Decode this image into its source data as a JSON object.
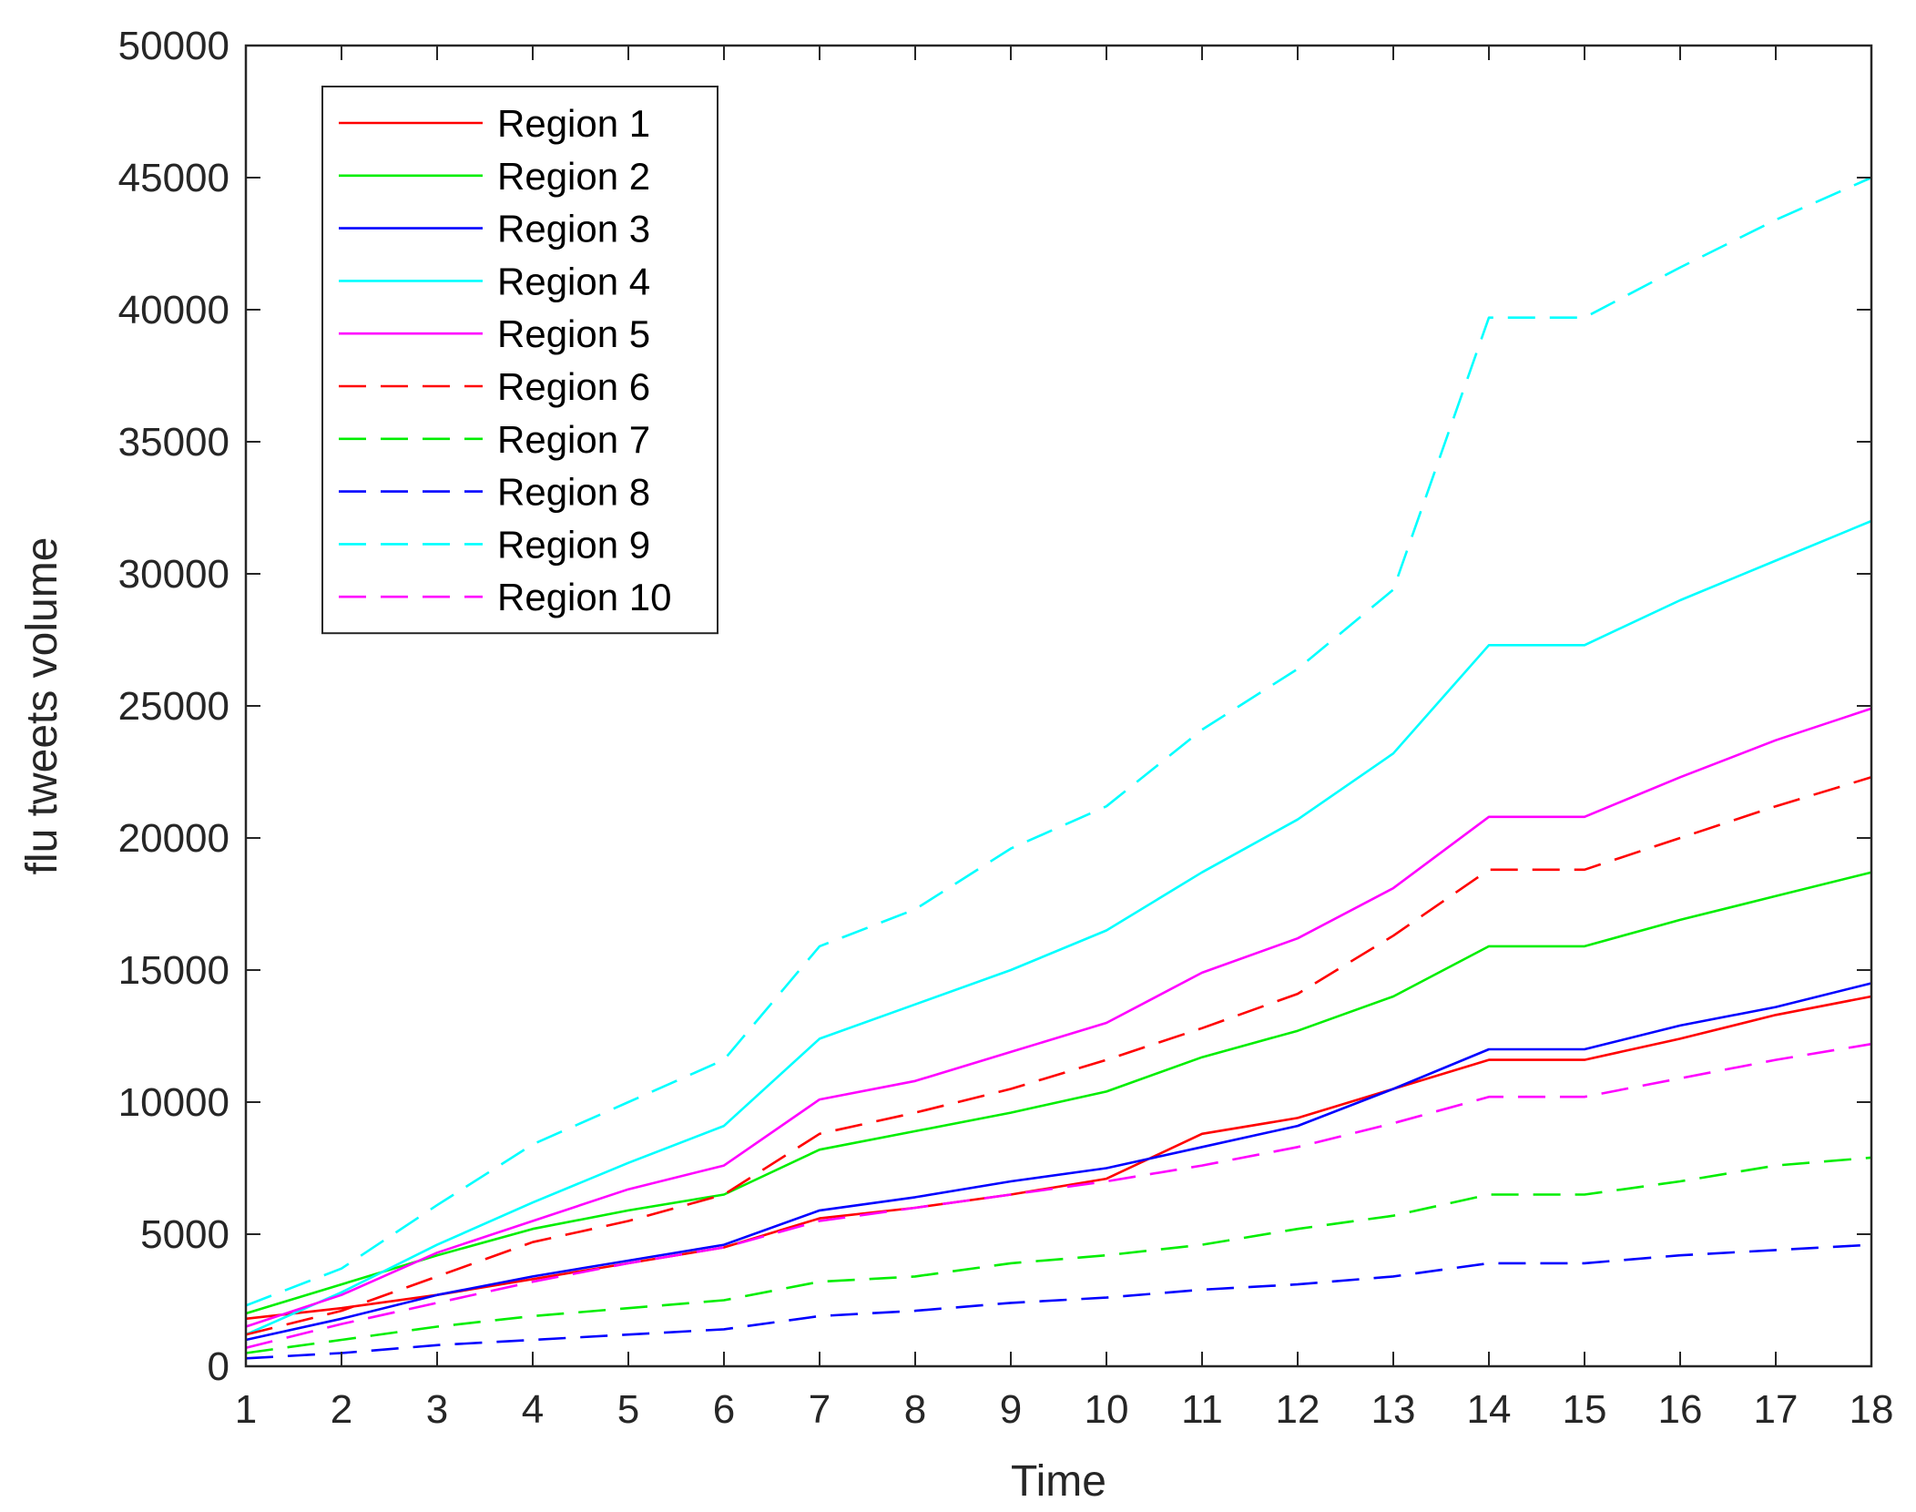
{
  "chart_data": {
    "type": "line",
    "title": "",
    "xlabel": "Time",
    "ylabel": "flu tweets volume",
    "xlim": [
      1,
      18
    ],
    "ylim": [
      0,
      50000
    ],
    "grid": false,
    "legend_position": "top-left",
    "x": [
      1,
      2,
      3,
      4,
      5,
      6,
      7,
      8,
      9,
      10,
      11,
      12,
      13,
      14,
      15,
      16,
      17,
      18
    ],
    "x_ticks": [
      1,
      2,
      3,
      4,
      5,
      6,
      7,
      8,
      9,
      10,
      11,
      12,
      13,
      14,
      15,
      16,
      17,
      18
    ],
    "y_ticks": [
      0,
      5000,
      10000,
      15000,
      20000,
      25000,
      30000,
      35000,
      40000,
      45000,
      50000
    ],
    "series": [
      {
        "name": "Region 1",
        "color": "#ff0000",
        "style": "solid",
        "values": [
          1800,
          2200,
          2700,
          3300,
          3900,
          4500,
          5600,
          6000,
          6500,
          7100,
          8800,
          9400,
          10500,
          11600,
          11600,
          12400,
          13300,
          14000
        ]
      },
      {
        "name": "Region 2",
        "color": "#00ee00",
        "style": "solid",
        "values": [
          2000,
          3100,
          4200,
          5200,
          5900,
          6500,
          8200,
          8900,
          9600,
          10400,
          11700,
          12700,
          14000,
          15900,
          15900,
          16900,
          17800,
          18700
        ]
      },
      {
        "name": "Region 3",
        "color": "#0000ff",
        "style": "solid",
        "values": [
          1000,
          1800,
          2700,
          3400,
          4000,
          4600,
          5900,
          6400,
          7000,
          7500,
          8300,
          9100,
          10500,
          12000,
          12000,
          12900,
          13600,
          14500
        ]
      },
      {
        "name": "Region 4",
        "color": "#00ffff",
        "style": "solid",
        "values": [
          1200,
          2800,
          4600,
          6200,
          7700,
          9100,
          12400,
          13700,
          15000,
          16500,
          18700,
          20700,
          23200,
          27300,
          27300,
          29000,
          30500,
          32000
        ]
      },
      {
        "name": "Region 5",
        "color": "#ff00ff",
        "style": "solid",
        "values": [
          1500,
          2700,
          4300,
          5500,
          6700,
          7600,
          10100,
          10800,
          11900,
          13000,
          14900,
          16200,
          18100,
          20800,
          20800,
          22300,
          23700,
          24900
        ]
      },
      {
        "name": "Region 6",
        "color": "#ff0000",
        "style": "dashed",
        "values": [
          1200,
          2100,
          3400,
          4700,
          5500,
          6500,
          8800,
          9600,
          10500,
          11600,
          12800,
          14100,
          16300,
          18800,
          18800,
          20000,
          21200,
          22300
        ]
      },
      {
        "name": "Region 7",
        "color": "#00ee00",
        "style": "dashed",
        "values": [
          500,
          1000,
          1500,
          1900,
          2200,
          2500,
          3200,
          3400,
          3900,
          4200,
          4600,
          5200,
          5700,
          6500,
          6500,
          7000,
          7600,
          7900
        ]
      },
      {
        "name": "Region 8",
        "color": "#0000ff",
        "style": "dashed",
        "values": [
          300,
          500,
          800,
          1000,
          1200,
          1400,
          1900,
          2100,
          2400,
          2600,
          2900,
          3100,
          3400,
          3900,
          3900,
          4200,
          4400,
          4600
        ]
      },
      {
        "name": "Region 9",
        "color": "#00ffff",
        "style": "dashed",
        "values": [
          2300,
          3700,
          6100,
          8400,
          10000,
          11600,
          15900,
          17300,
          19600,
          21200,
          24100,
          26400,
          29400,
          39700,
          39700,
          41600,
          43400,
          45000
        ]
      },
      {
        "name": "Region 10",
        "color": "#ff00ff",
        "style": "dashed",
        "values": [
          700,
          1600,
          2400,
          3200,
          3900,
          4500,
          5500,
          6000,
          6500,
          7000,
          7600,
          8300,
          9200,
          10200,
          10200,
          10900,
          11600,
          12200
        ]
      }
    ]
  }
}
